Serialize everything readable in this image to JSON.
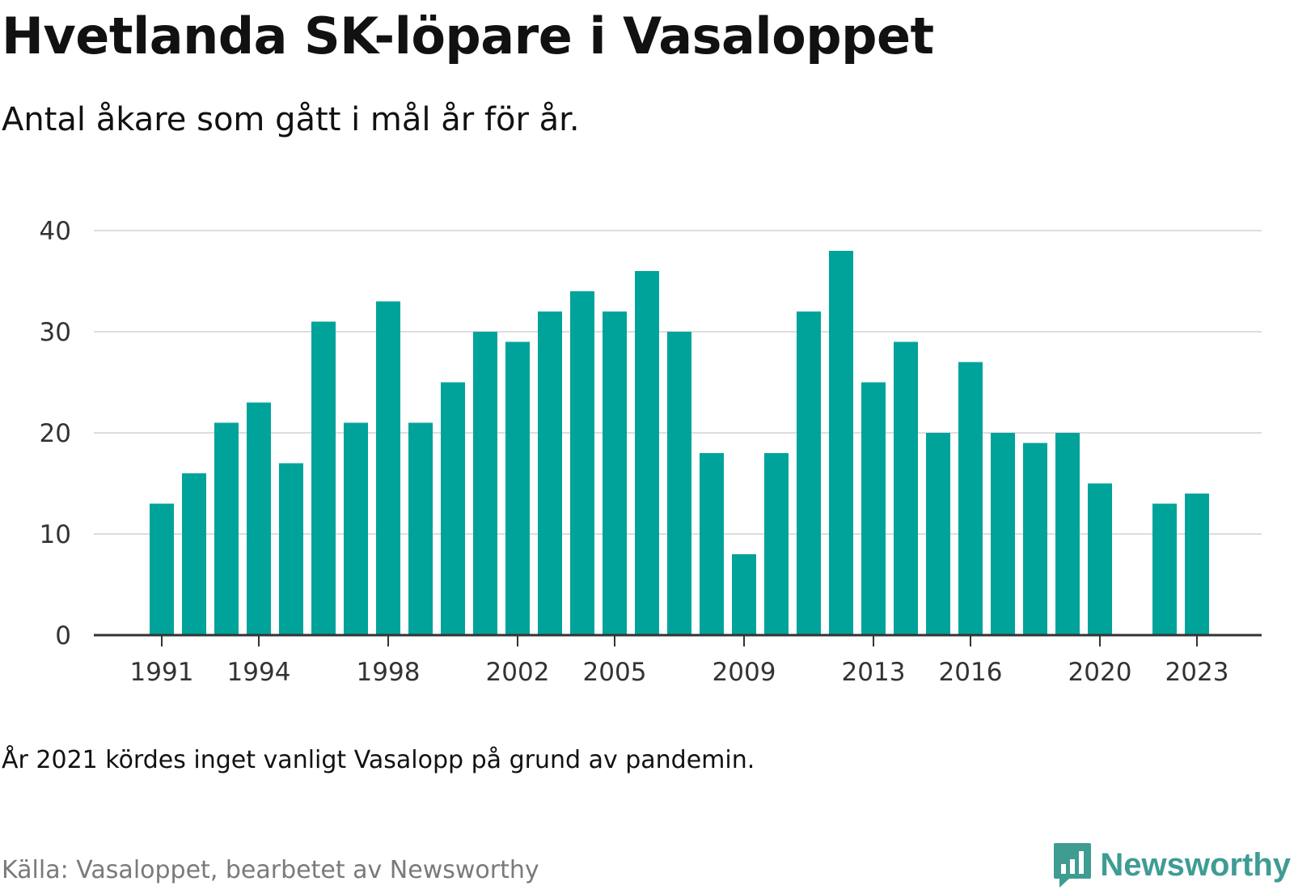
{
  "header": {
    "title": "Hvetlanda SK-löpare i Vasaloppet",
    "subtitle": "Antal åkare som gått i mål år för år."
  },
  "footer": {
    "note": "År 2021 kördes inget vanligt Vasalopp på grund av pandemin.",
    "source": "Källa: Vasaloppet, bearbetet av Newsworthy",
    "brand": "Newsworthy",
    "brand_icon": "bar-chart-speech-bubble-icon"
  },
  "colors": {
    "bar": "#00a39a",
    "grid": "#dddddd",
    "axis": "#333333",
    "brand": "#3f9c93"
  },
  "chart_data": {
    "type": "bar",
    "categories": [
      "1991",
      "1992",
      "1993",
      "1994",
      "1995",
      "1996",
      "1997",
      "1998",
      "1999",
      "2000",
      "2001",
      "2002",
      "2003",
      "2004",
      "2005",
      "2006",
      "2007",
      "2008",
      "2009",
      "2010",
      "2011",
      "2012",
      "2013",
      "2014",
      "2015",
      "2016",
      "2017",
      "2018",
      "2019",
      "2020",
      "2021",
      "2022",
      "2023"
    ],
    "values": [
      13,
      16,
      21,
      23,
      17,
      31,
      21,
      33,
      21,
      25,
      30,
      29,
      32,
      34,
      32,
      36,
      30,
      18,
      8,
      18,
      32,
      38,
      25,
      29,
      20,
      27,
      20,
      19,
      20,
      15,
      null,
      13,
      14
    ],
    "x_tick_labels": [
      "1991",
      "1994",
      "1998",
      "2002",
      "2005",
      "2009",
      "2013",
      "2016",
      "2020",
      "2023"
    ],
    "y_ticks": [
      0,
      10,
      20,
      30,
      40
    ],
    "ylim": [
      0,
      40
    ],
    "grid": true,
    "legend": "none"
  }
}
